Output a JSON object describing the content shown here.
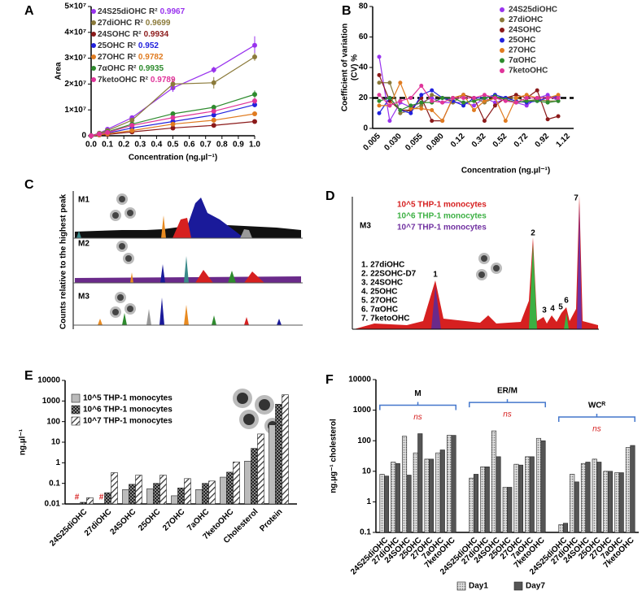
{
  "panel_labels": [
    "A",
    "B",
    "C",
    "D",
    "E",
    "F"
  ],
  "chart_data": [
    {
      "type": "line",
      "xlabel": "Concentration (ng.µl⁻¹)",
      "ylabel": "Area",
      "r2_label": "R²",
      "x": [
        0,
        0.05,
        0.1,
        0.25,
        0.5,
        0.75,
        1
      ],
      "xlim": [
        0,
        1
      ],
      "xticks": [
        {
          "value": 0,
          "label": "0.0"
        },
        0.1,
        0.2,
        0.3,
        0.4,
        0.5,
        0.6,
        0.7,
        0.8,
        0.9,
        {
          "value": 1,
          "label": "1.0"
        }
      ],
      "ylim": [
        0,
        50000000
      ],
      "yticks": [
        0,
        {
          "value": 10000000,
          "label": "1×10⁷"
        },
        {
          "value": 20000000,
          "label": "2×10⁷"
        },
        {
          "value": 30000000,
          "label": "3×10⁷"
        },
        {
          "value": 40000000,
          "label": "4×10⁷"
        },
        {
          "value": 50000000,
          "label": "5×10⁷"
        }
      ],
      "series": [
        {
          "name": "24S25diOHC",
          "r2": 0.9967,
          "color": "#9933ee",
          "values": [
            0,
            1000000,
            2500000,
            7000000,
            18500000,
            25500000,
            35000000
          ],
          "errors": [
            0,
            200000,
            300000,
            600000,
            1500000,
            1200000,
            3500000
          ]
        },
        {
          "name": "27diOHC",
          "r2": 0.9699,
          "color": "#8b7a3a",
          "values": [
            0,
            1000000,
            2000000,
            6000000,
            20000000,
            20500000,
            30500000
          ],
          "errors": [
            0,
            200000,
            300000,
            600000,
            2000000,
            2200000,
            1500000
          ]
        },
        {
          "name": "24SOHC",
          "r2": 0.9934,
          "color": "#8b1a1a",
          "values": [
            0,
            300000,
            500000,
            1500000,
            3000000,
            4000000,
            5500000
          ],
          "errors": [
            0,
            100000,
            100000,
            200000,
            300000,
            400000,
            500000
          ]
        },
        {
          "name": "25OHC",
          "r2": 0.952,
          "color": "#2222dd",
          "values": [
            0,
            500000,
            1000000,
            3000000,
            5500000,
            8000000,
            12000000
          ],
          "errors": [
            0,
            100000,
            200000,
            400000,
            600000,
            800000,
            1000000
          ]
        },
        {
          "name": "27OHC",
          "r2": 0.9782,
          "color": "#e07b20",
          "values": [
            0,
            400000,
            800000,
            2000000,
            4500000,
            6000000,
            8500000
          ],
          "errors": [
            0,
            100000,
            100000,
            300000,
            500000,
            600000,
            800000
          ]
        },
        {
          "name": "7αOHC",
          "r2": 0.9935,
          "color": "#2e8b2e",
          "values": [
            0,
            800000,
            1500000,
            4500000,
            8500000,
            11000000,
            16000000
          ],
          "errors": [
            0,
            200000,
            300000,
            500000,
            900000,
            1000000,
            1500000
          ]
        },
        {
          "name": "7ketoOHC",
          "r2": 0.9789,
          "color": "#e0349a",
          "values": [
            0,
            700000,
            1300000,
            4000000,
            7000000,
            9500000,
            13500000
          ],
          "errors": [
            0,
            200000,
            200000,
            400000,
            700000,
            900000,
            1200000
          ]
        }
      ]
    },
    {
      "type": "line",
      "xlabel": "Concentration (ng.µl⁻¹)",
      "ylabel": [
        "Coefficient of  variation",
        "(CV) %"
      ],
      "categories": [
        "0.005",
        null,
        "0.030",
        null,
        "0.055",
        null,
        "0.080",
        null,
        "0.12",
        null,
        "0.32",
        null,
        "0.52",
        null,
        "0.72",
        null,
        "0.92",
        null,
        "1.12"
      ],
      "ylim": [
        0,
        80
      ],
      "yticks": [
        0,
        20,
        40,
        60,
        80
      ],
      "reference_line": 20,
      "series": [
        {
          "name": "24S25diOHC",
          "color": "#9933ee",
          "values": [
            47,
            5,
            17,
            14,
            17,
            20,
            17,
            17,
            17,
            15,
            20,
            17,
            19,
            17,
            15,
            20,
            22,
            18,
            null
          ]
        },
        {
          "name": "27diOHC",
          "color": "#8b7a3a",
          "values": [
            30,
            30,
            10,
            12,
            15,
            22,
            20,
            17,
            22,
            20,
            17,
            20,
            20,
            20,
            18,
            19,
            18,
            18,
            null
          ]
        },
        {
          "name": "24SOHC",
          "color": "#8b1a1a",
          "values": [
            35,
            18,
            12,
            12,
            20,
            5,
            5,
            20,
            22,
            20,
            5,
            15,
            20,
            22,
            20,
            25,
            6,
            8,
            null
          ]
        },
        {
          "name": "25OHC",
          "color": "#2222dd",
          "values": [
            10,
            20,
            12,
            10,
            22,
            25,
            20,
            18,
            15,
            20,
            20,
            22,
            20,
            18,
            17,
            18,
            20,
            21,
            null
          ]
        },
        {
          "name": "27OHC",
          "color": "#e07b20",
          "values": [
            15,
            15,
            30,
            13,
            13,
            12,
            5,
            20,
            22,
            12,
            18,
            20,
            5,
            20,
            22,
            20,
            20,
            22,
            null
          ]
        },
        {
          "name": "7αOHC",
          "color": "#2e8b2e",
          "values": [
            18,
            20,
            12,
            15,
            17,
            17,
            20,
            20,
            17,
            18,
            20,
            21,
            19,
            17,
            18,
            18,
            17,
            18,
            null
          ]
        },
        {
          "name": "7ketoOHC",
          "color": "#e0349a",
          "values": [
            22,
            15,
            18,
            20,
            28,
            18,
            17,
            20,
            20,
            20,
            22,
            20,
            18,
            17,
            20,
            20,
            20,
            20,
            null
          ]
        }
      ]
    },
    {
      "type": "bar",
      "log": true,
      "ylabel": "ng.µl⁻¹",
      "missing_label": "#",
      "legend": "top-left",
      "categories": [
        "24S25diOHC",
        "27diOHC",
        "24SOHC",
        "25OHC",
        "27OHC",
        "7aOHC",
        "7ketoOHC",
        "Cholesterol",
        "Protein"
      ],
      "ylim": [
        0.01,
        10000
      ],
      "yticks": [
        0.01,
        0.1,
        1,
        10,
        100,
        1000,
        10000
      ],
      "series": [
        {
          "name": "10^5 THP-1 monocytes",
          "color": "#bbbbbb",
          "pattern": "solid",
          "values": [
            null,
            null,
            0.05,
            0.055,
            0.025,
            0.05,
            0.2,
            1.2,
            70
          ]
        },
        {
          "name": "10^6 THP-1 monocytes",
          "color": "#333333",
          "pattern": "checker",
          "values": [
            0.012,
            0.035,
            0.09,
            0.1,
            0.06,
            0.1,
            0.35,
            5,
            700
          ]
        },
        {
          "name": "10^7 THP-1 monocytes",
          "color": "#555555",
          "pattern": "hatch",
          "values": [
            0.02,
            0.33,
            0.25,
            0.25,
            0.17,
            0.13,
            1.1,
            25,
            2000
          ]
        }
      ]
    },
    {
      "type": "bar",
      "log": true,
      "ylabel": "ng.µg⁻¹ cholesterol",
      "legend": "bottom",
      "groups": [
        {
          "name": "M",
          "annotation": "ns"
        },
        {
          "name": "ER/M",
          "annotation": "ns"
        },
        {
          "name": "WCᴿ",
          "annotation": "ns"
        }
      ],
      "categories": [
        "24S25diOHC",
        "27diOHC",
        "24SOHC",
        "25OHC",
        "27OHC",
        "7aOHC",
        "7ketoOHC",
        "24S25diOHC",
        "27diOHC",
        "24SOHC",
        "25OHC",
        "27OHC",
        "7aOHC",
        "7ketoOHC",
        "24S25diOHC",
        "27diOHC",
        "24SOHC",
        "25OHC",
        "27OHC",
        "7aOHC",
        "7ketoOHC"
      ],
      "ylim": [
        0.1,
        10000
      ],
      "yticks": [
        0.1,
        1,
        10,
        100,
        1000,
        10000
      ],
      "series": [
        {
          "name": "Day1",
          "color": "#cccccc",
          "pattern": "stipple",
          "values": [
            8,
            20,
            140,
            40,
            25,
            40,
            150,
            6,
            14,
            210,
            3,
            17,
            30,
            120,
            0.18,
            8,
            18,
            25,
            10,
            9,
            60
          ]
        },
        {
          "name": "Day7",
          "color": "#555555",
          "pattern": "solid",
          "values": [
            7,
            18,
            7.5,
            170,
            25,
            50,
            150,
            8,
            14,
            30,
            3,
            16,
            30,
            100,
            0.2,
            4.5,
            20,
            20,
            10,
            9,
            70
          ]
        }
      ]
    }
  ],
  "chromatograms": {
    "c": {
      "ylabel": "Counts relative to the highest peak",
      "traces": [
        "M1",
        "M2",
        "M3"
      ]
    },
    "d": {
      "trace": "M3",
      "legend": [
        "10^5 THP-1 monocytes",
        "10^6 THP-1 monocytes",
        "10^7 THP-1 monocytes"
      ],
      "compounds": [
        "1. 27diOHC",
        "2. 22SOHC-D7",
        "3. 24SOHC",
        "4. 25OHC",
        "5. 27OHC",
        "6. 7αOHC",
        "7. 7ketoOHC"
      ],
      "peaks": [
        "1",
        "2",
        "3",
        "4",
        "5",
        "6",
        "7"
      ]
    }
  }
}
